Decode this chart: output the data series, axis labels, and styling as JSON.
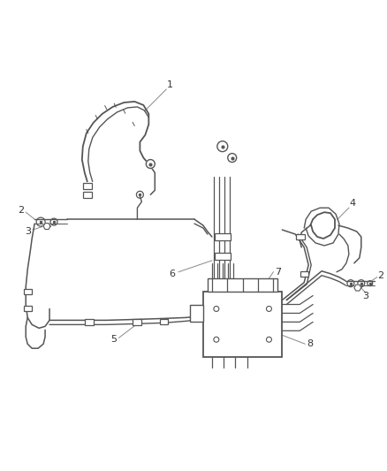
{
  "bg_color": "#ffffff",
  "line_color": "#555555",
  "lw_main": 1.4,
  "lw_thin": 1.0,
  "label_color": "#333333",
  "label_fs": 8,
  "fig_width": 4.38,
  "fig_height": 5.33,
  "dpi": 100
}
